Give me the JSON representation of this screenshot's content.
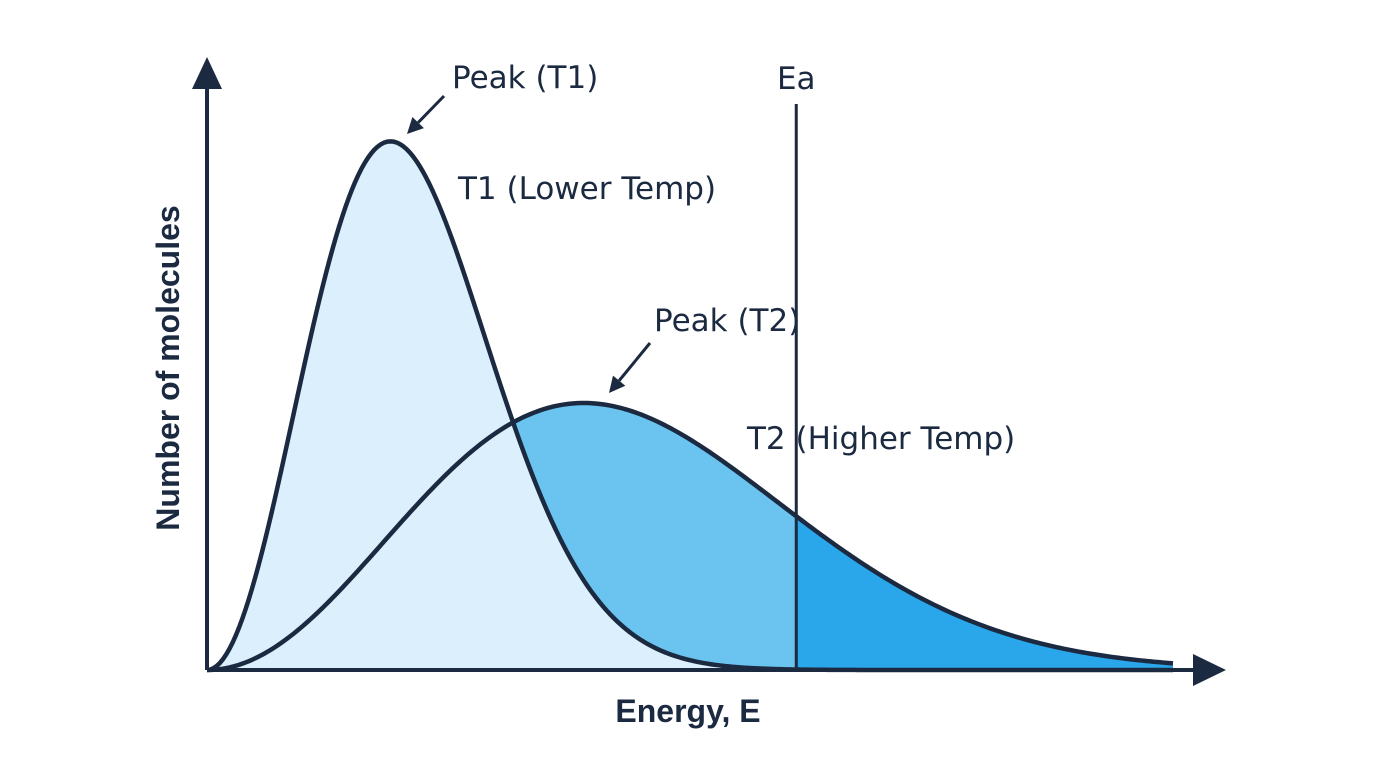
{
  "chart_data": {
    "type": "area",
    "title": "",
    "xlabel": "Energy, E",
    "ylabel": "Number of molecules",
    "grid": false,
    "legend": "none",
    "series": [
      {
        "name": "T1 (Lower Temp)",
        "shape": "Maxwell-Boltzmann",
        "peak_x": 0.19,
        "peak_y": 0.99,
        "fill": "#dbeffc"
      },
      {
        "name": "T2 (Higher Temp)",
        "shape": "Maxwell-Boltzmann",
        "peak_x": 0.39,
        "peak_y": 0.5,
        "fill": "#6bc4ef",
        "tail_fill": "#2aa7ea"
      }
    ],
    "threshold": {
      "label": "Ea",
      "x": 0.61
    },
    "annotations": [
      {
        "text": "Peak (T1)",
        "target": "T1 peak"
      },
      {
        "text": "Peak (T2)",
        "target": "T2 peak"
      }
    ],
    "colors": {
      "line": "#1b2a41",
      "t1_fill": "#dbeffc",
      "t2_fill": "#6bc4ef",
      "tail_fill": "#2aa7ea"
    }
  }
}
